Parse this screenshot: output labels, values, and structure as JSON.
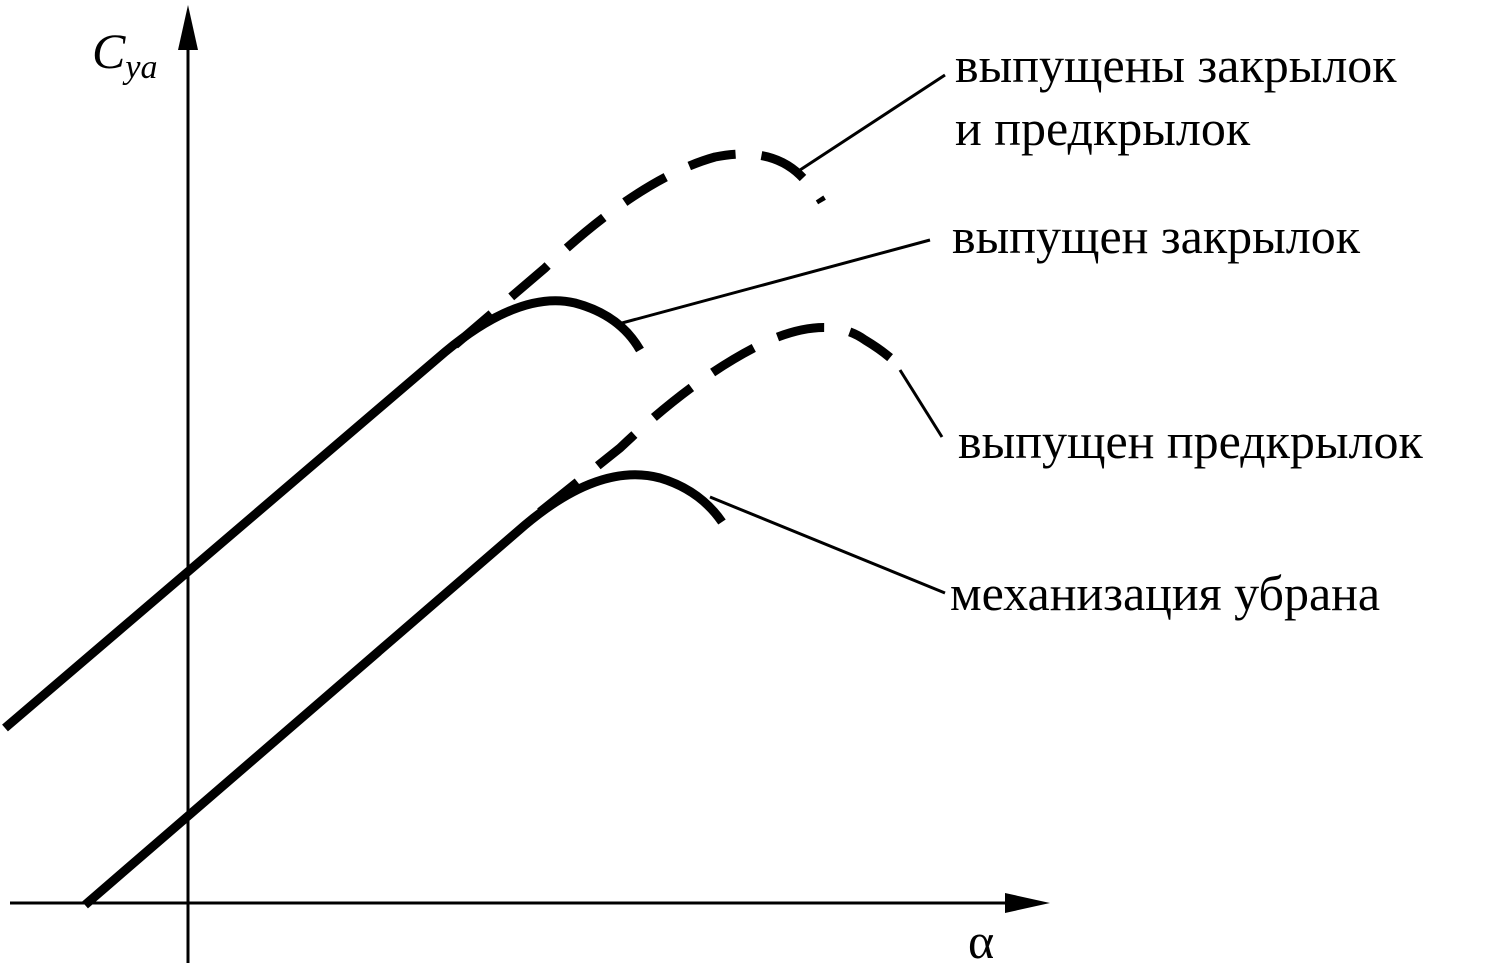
{
  "axes": {
    "y": {
      "symbol": "C",
      "subscript": "ya"
    },
    "x": {
      "symbol": "α"
    }
  },
  "curves": [
    {
      "label": [
        "выпущены закрылок",
        "и предкрылок"
      ]
    },
    {
      "label": [
        "выпущен закрылок"
      ]
    },
    {
      "label": [
        "выпущен предкрылок"
      ]
    },
    {
      "label": [
        "механизация убрана"
      ]
    }
  ]
}
